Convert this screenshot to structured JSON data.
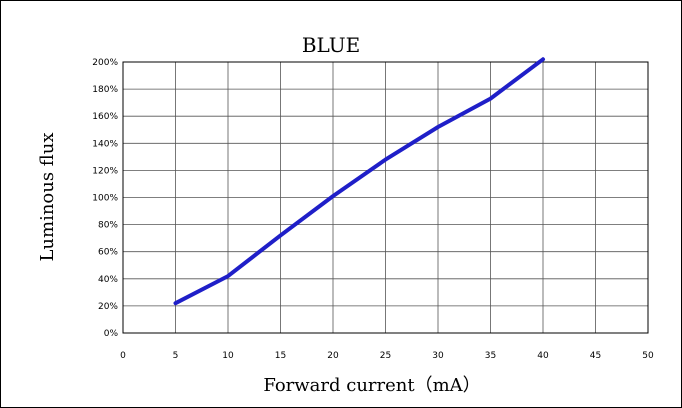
{
  "chart_data": {
    "type": "line",
    "title": "BLUE",
    "xlabel": "Forward current（mA）",
    "ylabel": "Luminous flux",
    "xlim": [
      0,
      50
    ],
    "ylim": [
      0,
      200
    ],
    "x_ticks": [
      0,
      5,
      10,
      15,
      20,
      25,
      30,
      35,
      40,
      45,
      50
    ],
    "y_ticks": [
      0,
      20,
      40,
      60,
      80,
      100,
      120,
      140,
      160,
      180,
      200
    ],
    "y_tick_labels": [
      "0%",
      "20%",
      "40%",
      "60%",
      "80%",
      "100%",
      "120%",
      "140%",
      "160%",
      "180%",
      "200%"
    ],
    "grid": true,
    "series": [
      {
        "color": "#1f1fc8",
        "x": [
          5,
          10,
          15,
          20,
          25,
          30,
          35,
          40
        ],
        "y": [
          22,
          42,
          72,
          101,
          128,
          152,
          173,
          202
        ]
      }
    ]
  }
}
